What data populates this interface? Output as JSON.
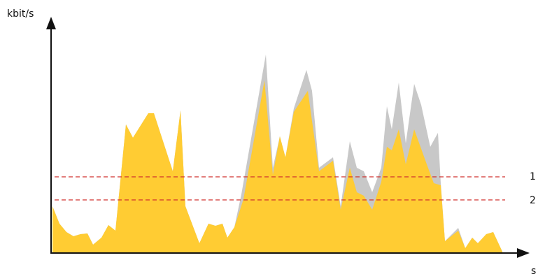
{
  "axes": {
    "y_label": "kbit/s",
    "x_label": "s"
  },
  "limits": [
    {
      "label": "1"
    },
    {
      "label": "2"
    }
  ]
}
